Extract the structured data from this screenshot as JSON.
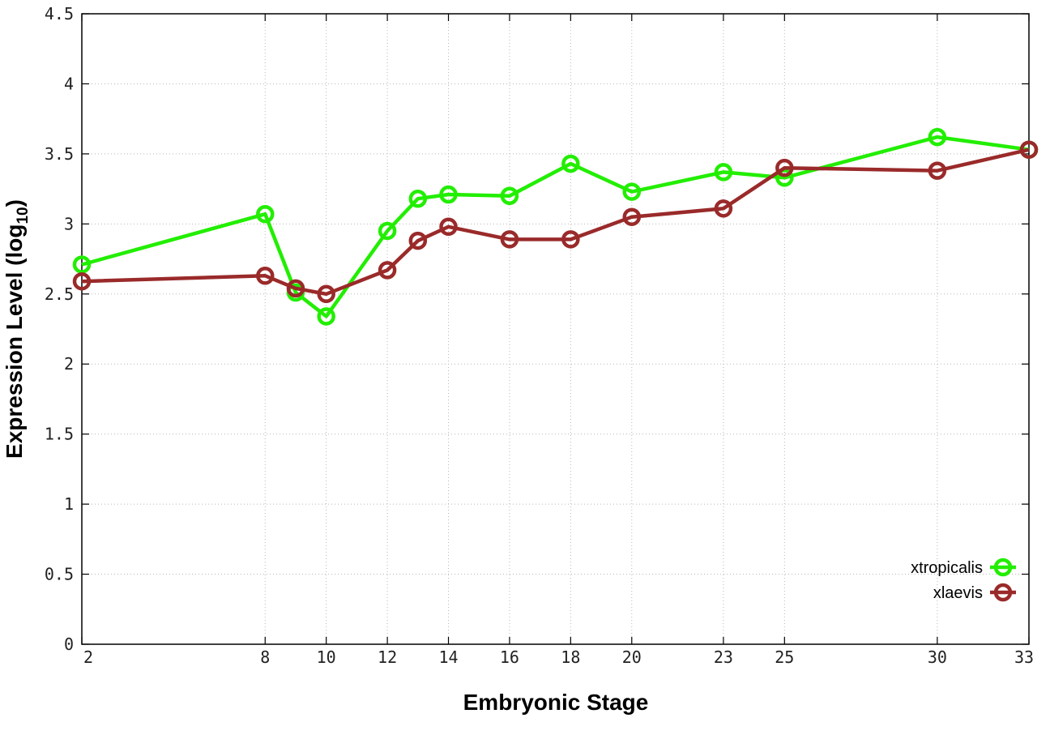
{
  "chart_data": {
    "type": "line",
    "xlabel": "Embryonic Stage",
    "ylabel": "Expression Level (log",
    "ylabel_subscript": "10",
    "ylabel_close": ")",
    "xlim": [
      2,
      33
    ],
    "ylim": [
      0,
      4.5
    ],
    "x_ticks": [
      2,
      8,
      10,
      12,
      14,
      16,
      18,
      20,
      23,
      25,
      30,
      33
    ],
    "y_ticks": [
      {
        "value": 0,
        "label": "0"
      },
      {
        "value": 0.5,
        "label": "0.5"
      },
      {
        "value": 1,
        "label": "1"
      },
      {
        "value": 1.5,
        "label": "1.5"
      },
      {
        "value": 2,
        "label": "2"
      },
      {
        "value": 2.5,
        "label": "2.5"
      },
      {
        "value": 3,
        "label": "3"
      },
      {
        "value": 3.5,
        "label": "3.5"
      },
      {
        "value": 4,
        "label": "4"
      },
      {
        "value": 4.5,
        "label": "4.5"
      }
    ],
    "grid": true,
    "legend_position": "bottom-right",
    "series": [
      {
        "name": "xtropicalis",
        "color": "#22ee00",
        "x": [
          2,
          8,
          9,
          10,
          12,
          13,
          14,
          16,
          18,
          20,
          23,
          25,
          30,
          33
        ],
        "y": [
          2.71,
          3.07,
          2.51,
          2.34,
          2.95,
          3.18,
          3.21,
          3.2,
          3.43,
          3.23,
          3.37,
          3.33,
          3.62,
          3.53
        ]
      },
      {
        "name": "xlaevis",
        "color": "#9a2a2a",
        "x": [
          2,
          8,
          9,
          10,
          12,
          13,
          14,
          16,
          18,
          20,
          23,
          25,
          30,
          33
        ],
        "y": [
          2.59,
          2.63,
          2.54,
          2.5,
          2.67,
          2.88,
          2.98,
          2.89,
          2.89,
          3.05,
          3.11,
          3.4,
          3.38,
          3.53
        ]
      }
    ]
  }
}
